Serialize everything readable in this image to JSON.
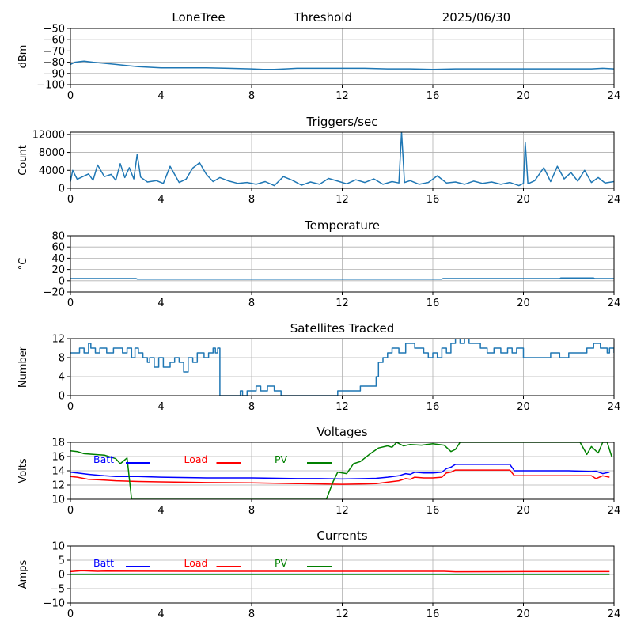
{
  "header": {
    "station": "LoneTree",
    "mode": "Threshold",
    "date": "2025/06/30"
  },
  "chart_data": [
    {
      "type": "line",
      "title": "",
      "xlabel": "",
      "ylabel": "dBm",
      "xlim": [
        0,
        24
      ],
      "ylim": [
        -100,
        -50
      ],
      "xticks": [
        0,
        4,
        8,
        12,
        16,
        20,
        24
      ],
      "yticks": [
        -100,
        -90,
        -80,
        -70,
        -60,
        -50
      ],
      "ytick_labels": [
        "−100",
        "−90",
        "−80",
        "−70",
        "−60",
        "−50"
      ],
      "grid": true,
      "series": [
        {
          "name": "",
          "color": "#1f77b4",
          "x": [
            0,
            0.2,
            0.4,
            0.6,
            1.0,
            1.5,
            2.0,
            2.5,
            3.0,
            3.5,
            4,
            5,
            6,
            7,
            8,
            8.5,
            9,
            9.5,
            10,
            11,
            12,
            13,
            14,
            15,
            16,
            17,
            18,
            19,
            20,
            21,
            22,
            23,
            23.5,
            24
          ],
          "y": [
            -82,
            -80,
            -79.5,
            -79,
            -80,
            -81,
            -82,
            -83,
            -84,
            -84.5,
            -85,
            -85,
            -85,
            -85.5,
            -86,
            -86.5,
            -86.5,
            -86,
            -85.5,
            -85.5,
            -85.5,
            -85.5,
            -86,
            -86,
            -86.5,
            -86,
            -86,
            -86,
            -86,
            -86,
            -86,
            -86,
            -85.5,
            -86
          ]
        }
      ]
    },
    {
      "type": "line",
      "title": "Triggers/sec",
      "xlabel": "",
      "ylabel": "Count",
      "xlim": [
        0,
        24
      ],
      "ylim": [
        0,
        12500
      ],
      "xticks": [
        0,
        4,
        8,
        12,
        16,
        20,
        24
      ],
      "yticks": [
        0,
        4000,
        8000,
        12000
      ],
      "ytick_labels": [
        "0",
        "4000",
        "8000",
        "12000"
      ],
      "grid": true,
      "series": [
        {
          "name": "",
          "color": "#1f77b4",
          "x": [
            0,
            0.1,
            0.3,
            0.5,
            0.8,
            1.0,
            1.2,
            1.5,
            1.8,
            2.0,
            2.2,
            2.4,
            2.6,
            2.8,
            2.95,
            3.1,
            3.4,
            3.8,
            4.1,
            4.4,
            4.8,
            5.1,
            5.4,
            5.7,
            6.0,
            6.3,
            6.6,
            7.0,
            7.4,
            7.8,
            8.2,
            8.6,
            9.0,
            9.4,
            9.8,
            10.2,
            10.6,
            11.0,
            11.4,
            11.8,
            12.2,
            12.6,
            13.0,
            13.4,
            13.8,
            14.2,
            14.5,
            14.62,
            14.75,
            15.0,
            15.4,
            15.8,
            16.2,
            16.6,
            17.0,
            17.4,
            17.8,
            18.2,
            18.6,
            19.0,
            19.4,
            19.8,
            20.0,
            20.08,
            20.2,
            20.5,
            20.9,
            21.2,
            21.5,
            21.8,
            22.1,
            22.4,
            22.7,
            23.0,
            23.3,
            23.6,
            24
          ],
          "y": [
            1500,
            4000,
            2000,
            2500,
            3200,
            1800,
            5200,
            2600,
            3100,
            1800,
            5500,
            2400,
            4600,
            2100,
            7600,
            2500,
            1400,
            1700,
            1100,
            4900,
            1300,
            2000,
            4500,
            5700,
            3100,
            1500,
            2400,
            1600,
            1100,
            1300,
            900,
            1500,
            600,
            2600,
            1800,
            700,
            1400,
            900,
            2200,
            1600,
            1000,
            1900,
            1300,
            2100,
            900,
            1500,
            1200,
            12500,
            1300,
            1700,
            900,
            1300,
            2800,
            1200,
            1400,
            900,
            1600,
            1100,
            1400,
            900,
            1300,
            600,
            1100,
            10200,
            1000,
            1700,
            4600,
            1500,
            4900,
            2100,
            3500,
            1600,
            4000,
            1300,
            2400,
            1200,
            1500
          ]
        }
      ]
    },
    {
      "type": "line",
      "title": "Temperature",
      "xlabel": "",
      "ylabel": "°C",
      "xlim": [
        0,
        24
      ],
      "ylim": [
        -20,
        80
      ],
      "xticks": [
        0,
        4,
        8,
        12,
        16,
        20,
        24
      ],
      "yticks": [
        -20,
        0,
        20,
        40,
        60,
        80
      ],
      "ytick_labels": [
        "−20",
        "0",
        "20",
        "40",
        "60",
        "80"
      ],
      "grid": true,
      "series": [
        {
          "name": "",
          "color": "#1f77b4",
          "x": [
            0,
            2.9,
            2.95,
            16.4,
            16.45,
            21.6,
            21.65,
            23.1,
            23.15,
            24
          ],
          "y": [
            4,
            4,
            3,
            3,
            4,
            4,
            5,
            5,
            4,
            4
          ]
        }
      ]
    },
    {
      "type": "line",
      "title": "Satellites Tracked",
      "xlabel": "",
      "ylabel": "Number",
      "xlim": [
        0,
        24
      ],
      "ylim": [
        0,
        12
      ],
      "xticks": [
        0,
        4,
        8,
        12,
        16,
        20,
        24
      ],
      "yticks": [
        0,
        4,
        8,
        12
      ],
      "ytick_labels": [
        "0",
        "4",
        "8",
        "12"
      ],
      "grid": true,
      "series": [
        {
          "name": "",
          "color": "#1f77b4",
          "step": true,
          "x": [
            0,
            0.4,
            0.6,
            0.8,
            0.9,
            1.1,
            1.3,
            1.6,
            1.9,
            2.3,
            2.5,
            2.7,
            2.85,
            3.0,
            3.2,
            3.4,
            3.5,
            3.7,
            3.9,
            4.1,
            4.4,
            4.6,
            4.8,
            5.0,
            5.2,
            5.4,
            5.6,
            5.9,
            6.1,
            6.3,
            6.4,
            6.5,
            6.6,
            7.5,
            7.6,
            7.8,
            8.2,
            8.4,
            8.7,
            9.0,
            9.3,
            10.0,
            10.8,
            11.5,
            11.8,
            12.5,
            12.8,
            13.5,
            13.6,
            13.8,
            14.0,
            14.2,
            14.5,
            14.8,
            15.2,
            15.6,
            15.8,
            16.0,
            16.2,
            16.4,
            16.6,
            16.8,
            17.0,
            17.2,
            17.4,
            17.6,
            17.8,
            18.1,
            18.4,
            18.7,
            19.0,
            19.3,
            19.5,
            19.7,
            20.0,
            20.5,
            20.9,
            21.2,
            21.6,
            22.0,
            22.4,
            22.8,
            23.1,
            23.4,
            23.7,
            23.8,
            24
          ],
          "y": [
            9,
            10,
            9,
            11,
            10,
            9,
            10,
            9,
            10,
            9,
            10,
            8,
            10,
            9,
            8,
            7,
            8,
            6,
            8,
            6,
            7,
            8,
            7,
            5,
            8,
            7,
            9,
            8,
            9,
            10,
            9,
            10,
            0,
            1,
            0,
            1,
            2,
            1,
            2,
            1,
            0,
            0,
            0,
            0,
            1,
            1,
            2,
            4,
            7,
            8,
            9,
            10,
            9,
            11,
            10,
            9,
            8,
            9,
            8,
            10,
            9,
            11,
            12,
            11,
            12,
            11,
            11,
            10,
            9,
            10,
            9,
            10,
            9,
            10,
            8,
            8,
            8,
            9,
            8,
            9,
            9,
            10,
            11,
            10,
            9,
            10,
            9
          ]
        }
      ]
    },
    {
      "type": "line",
      "title": "Voltages",
      "xlabel": "",
      "ylabel": "Volts",
      "xlim": [
        0,
        24
      ],
      "ylim": [
        10,
        18
      ],
      "xticks": [
        0,
        4,
        8,
        12,
        16,
        20,
        24
      ],
      "yticks": [
        10,
        12,
        14,
        16,
        18
      ],
      "ytick_labels": [
        "10",
        "12",
        "14",
        "16",
        "18"
      ],
      "grid": true,
      "legend": "top-left",
      "series": [
        {
          "name": "Batt",
          "color": "#0000ff",
          "x": [
            0,
            0.3,
            0.8,
            1.5,
            2.0,
            3.0,
            4,
            6,
            8,
            10,
            11,
            12,
            13,
            13.5,
            14.0,
            14.5,
            14.8,
            15.0,
            15.2,
            15.6,
            16.0,
            16.4,
            16.6,
            16.8,
            17.0,
            18.0,
            19.0,
            19.4,
            19.6,
            20,
            21,
            22,
            23.0,
            23.2,
            23.5,
            23.8
          ],
          "y": [
            13.8,
            13.7,
            13.5,
            13.3,
            13.2,
            13.2,
            13.1,
            13.0,
            13.0,
            12.9,
            12.9,
            12.85,
            12.9,
            12.95,
            13.1,
            13.3,
            13.6,
            13.5,
            13.8,
            13.7,
            13.7,
            13.8,
            14.3,
            14.5,
            14.9,
            14.9,
            14.9,
            14.9,
            14.0,
            14.0,
            14.0,
            14.0,
            13.9,
            13.95,
            13.6,
            13.8
          ]
        },
        {
          "name": "Load",
          "color": "#ff0000",
          "x": [
            0,
            0.3,
            0.8,
            1.5,
            2.0,
            3.0,
            4,
            6,
            8,
            10,
            11,
            12,
            13,
            13.5,
            14.0,
            14.5,
            14.8,
            15.0,
            15.2,
            15.6,
            16.0,
            16.4,
            16.6,
            16.8,
            17.0,
            18.0,
            19.0,
            19.4,
            19.6,
            20,
            21,
            22,
            23.0,
            23.2,
            23.5,
            23.8
          ],
          "y": [
            13.2,
            13.1,
            12.8,
            12.7,
            12.6,
            12.5,
            12.45,
            12.35,
            12.3,
            12.2,
            12.15,
            12.1,
            12.15,
            12.2,
            12.4,
            12.6,
            12.9,
            12.8,
            13.1,
            13.0,
            13.0,
            13.1,
            13.7,
            13.8,
            14.1,
            14.1,
            14.1,
            14.1,
            13.3,
            13.3,
            13.3,
            13.3,
            13.3,
            12.9,
            13.3,
            13.1
          ]
        },
        {
          "name": "PV",
          "color": "#008000",
          "x": [
            0,
            0.3,
            0.6,
            1.0,
            1.5,
            2.0,
            2.2,
            2.5,
            2.7,
            11.3,
            11.6,
            11.8,
            12.2,
            12.5,
            12.8,
            13.2,
            13.6,
            14.0,
            14.2,
            14.4,
            14.7,
            15.0,
            15.5,
            16.0,
            16.5,
            16.8,
            17.0,
            17.2,
            17.5,
            22.5,
            22.8,
            23.0,
            23.3,
            23.5,
            23.7,
            23.9
          ],
          "y": [
            16.8,
            16.7,
            16.4,
            16.3,
            16.2,
            15.7,
            15.0,
            15.8,
            10.0,
            10.0,
            12.5,
            13.8,
            13.6,
            15.0,
            15.3,
            16.3,
            17.2,
            17.5,
            17.3,
            18.0,
            17.5,
            17.7,
            17.6,
            17.8,
            17.6,
            16.7,
            17.0,
            18.0,
            18.0,
            18.0,
            16.3,
            17.4,
            16.5,
            18.0,
            18.0,
            16.0
          ]
        }
      ]
    },
    {
      "type": "line",
      "title": "Currents",
      "xlabel": "",
      "ylabel": "Amps",
      "xlim": [
        0,
        24
      ],
      "ylim": [
        -10,
        10
      ],
      "xticks": [
        0,
        4,
        8,
        12,
        16,
        20,
        24
      ],
      "yticks": [
        -10,
        -5,
        0,
        5,
        10
      ],
      "ytick_labels": [
        "−10",
        "−5",
        "0",
        "5",
        "10"
      ],
      "grid": true,
      "legend": "top-left",
      "series": [
        {
          "name": "Batt",
          "color": "#0000ff",
          "x": [
            0,
            23.8
          ],
          "y": [
            0.1,
            0.1
          ]
        },
        {
          "name": "Load",
          "color": "#ff0000",
          "x": [
            0,
            0.5,
            1.2,
            1.6,
            3,
            6,
            10,
            14,
            16.5,
            17,
            20,
            23.8
          ],
          "y": [
            1.0,
            1.3,
            1.1,
            1.2,
            1.15,
            1.1,
            1.1,
            1.1,
            1.1,
            0.95,
            1.0,
            1.0
          ]
        },
        {
          "name": "PV",
          "color": "#008000",
          "x": [
            0,
            23.8
          ],
          "y": [
            0.0,
            0.0
          ]
        }
      ]
    }
  ]
}
